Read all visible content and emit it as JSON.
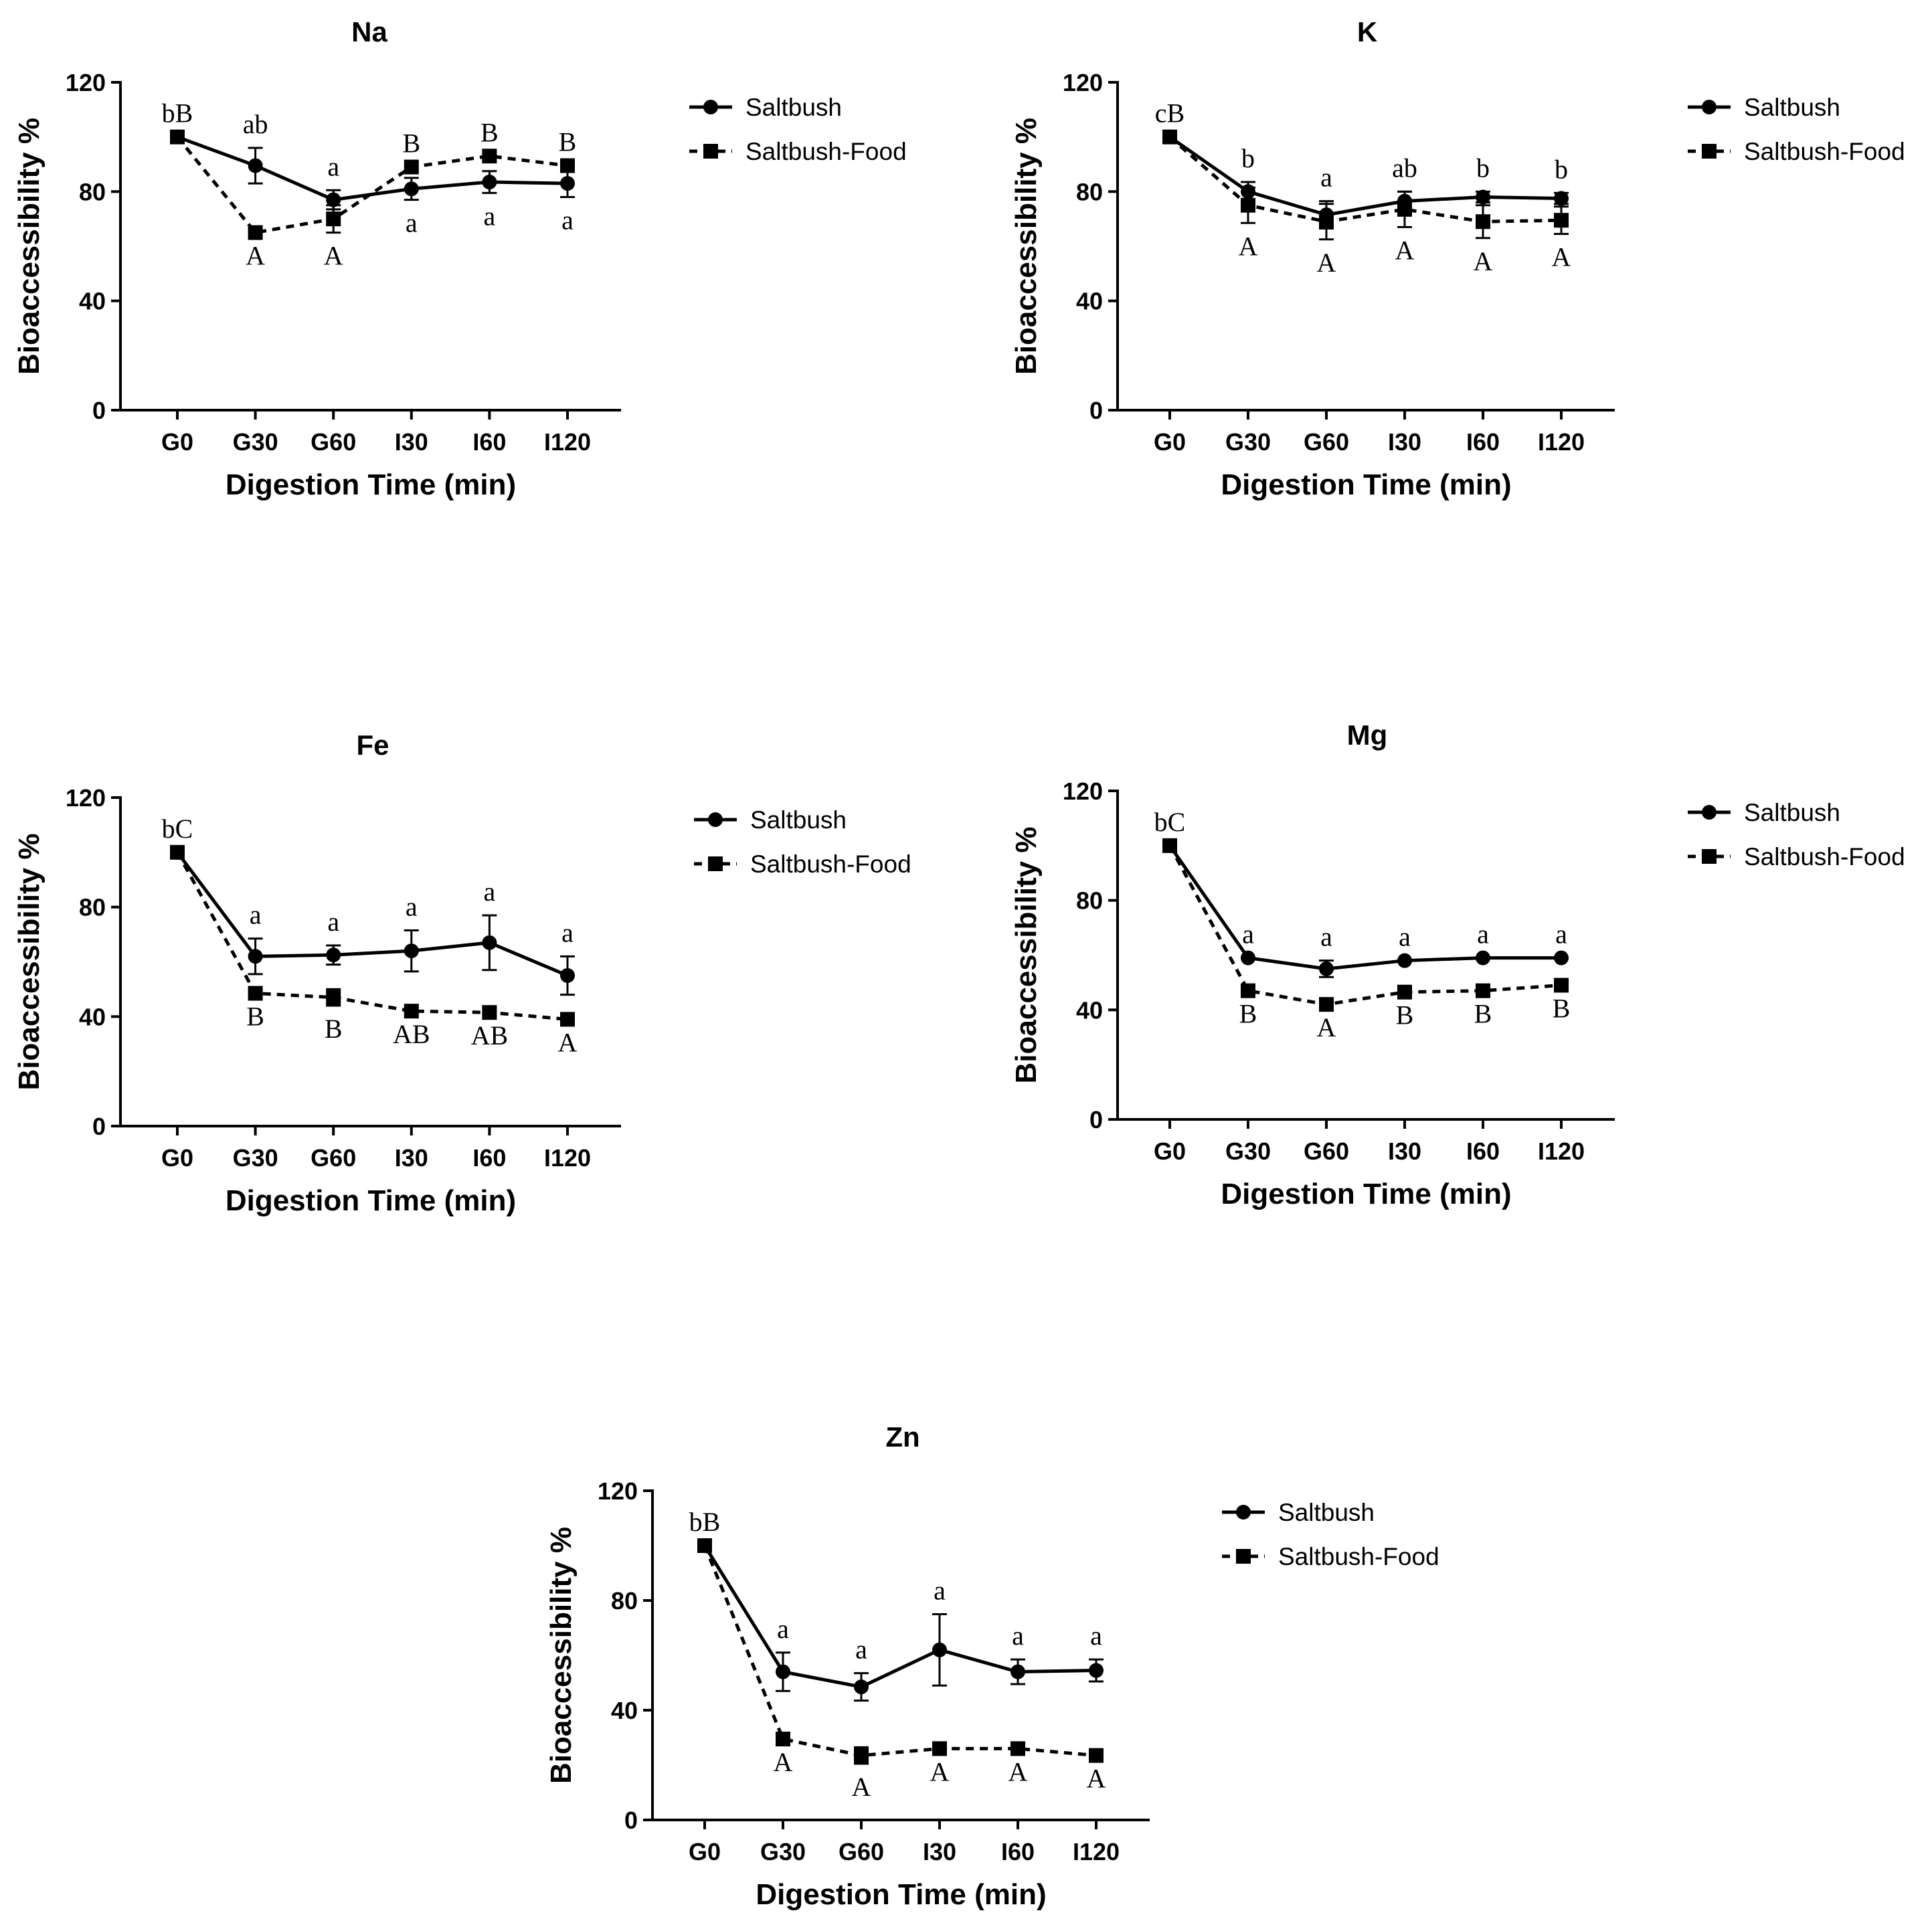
{
  "figure": {
    "xlabel": "Digestion Time (min)",
    "ylabel": "Bioaccessibility %",
    "categories": [
      "G0",
      "G30",
      "G60",
      "I30",
      "I60",
      "I120"
    ],
    "yticks": [
      "0",
      "40",
      "80",
      "120"
    ],
    "legend": [
      "Saltbush",
      "Saltbush-Food"
    ]
  },
  "chart_data": [
    {
      "type": "line",
      "title": "Na",
      "xlabel": "Digestion Time (min)",
      "ylabel": "Bioaccessibility %",
      "categories": [
        "G0",
        "G30",
        "G60",
        "I30",
        "I60",
        "I120"
      ],
      "ylim": [
        0,
        120
      ],
      "yticks": [
        0,
        40,
        80,
        120
      ],
      "legend_position": "right",
      "series": [
        {
          "name": "Saltbush",
          "style": "solid",
          "marker": "circle",
          "values": [
            100,
            89.5,
            77,
            81,
            83.5,
            83
          ],
          "errors": [
            0,
            6.5,
            3.5,
            4,
            4,
            5
          ],
          "labels": [
            "bB",
            "ab",
            "a",
            "a",
            "a",
            "a"
          ],
          "label_side": [
            "above",
            "above",
            "above",
            "below",
            "below",
            "below"
          ]
        },
        {
          "name": "Saltbush-Food",
          "style": "dashed",
          "marker": "square",
          "values": [
            100,
            65,
            70,
            89,
            93,
            89.5
          ],
          "errors": [
            0,
            0,
            5,
            0,
            0,
            0
          ],
          "labels": [
            "",
            "A",
            "A",
            "B",
            "B",
            "B"
          ],
          "label_side": [
            "",
            "below",
            "below",
            "above",
            "above",
            "above"
          ]
        }
      ]
    },
    {
      "type": "line",
      "title": "K",
      "xlabel": "Digestion Time (min)",
      "ylabel": "Bioaccessibility %",
      "categories": [
        "G0",
        "G30",
        "G60",
        "I30",
        "I60",
        "I120"
      ],
      "ylim": [
        0,
        120
      ],
      "yticks": [
        0,
        40,
        80,
        120
      ],
      "legend_position": "right",
      "series": [
        {
          "name": "Saltbush",
          "style": "solid",
          "marker": "circle",
          "values": [
            100,
            80,
            71.5,
            76.5,
            78,
            77.5
          ],
          "errors": [
            0,
            3.5,
            5,
            3.5,
            2,
            2
          ],
          "labels": [
            "cB",
            "b",
            "a",
            "ab",
            "b",
            "b"
          ],
          "label_side": [
            "above",
            "above",
            "above",
            "above",
            "above",
            "above"
          ]
        },
        {
          "name": "Saltbush-Food",
          "style": "dashed",
          "marker": "square",
          "values": [
            100,
            75,
            69,
            73.5,
            69,
            69.5
          ],
          "errors": [
            0,
            6.5,
            6.5,
            6.5,
            6,
            5
          ],
          "labels": [
            "",
            "A",
            "A",
            "A",
            "A",
            "A"
          ],
          "label_side": [
            "",
            "below",
            "below",
            "below",
            "below",
            "below"
          ]
        }
      ]
    },
    {
      "type": "line",
      "title": "Fe",
      "xlabel": "Digestion Time (min)",
      "ylabel": "Bioaccessibility %",
      "categories": [
        "G0",
        "G30",
        "G60",
        "I30",
        "I60",
        "I120"
      ],
      "ylim": [
        0,
        120
      ],
      "yticks": [
        0,
        40,
        80,
        120
      ],
      "legend_position": "right",
      "series": [
        {
          "name": "Saltbush",
          "style": "solid",
          "marker": "circle",
          "values": [
            100,
            62,
            62.5,
            64,
            67,
            55
          ],
          "errors": [
            0,
            6.5,
            3.5,
            7.5,
            10,
            7
          ],
          "labels": [
            "bC",
            "a",
            "a",
            "a",
            "a",
            "a"
          ],
          "label_side": [
            "above",
            "above",
            "above",
            "above",
            "above",
            "above"
          ]
        },
        {
          "name": "Saltbush-Food",
          "style": "dashed",
          "marker": "square",
          "values": [
            100,
            48.5,
            47,
            42,
            41.5,
            39
          ],
          "errors": [
            0,
            0,
            3,
            0,
            0,
            0
          ],
          "labels": [
            "",
            "B",
            "B",
            "AB",
            "AB",
            "A"
          ],
          "label_side": [
            "",
            "below",
            "below",
            "below",
            "below",
            "below"
          ]
        }
      ]
    },
    {
      "type": "line",
      "title": "Mg",
      "xlabel": "Digestion Time (min)",
      "ylabel": "Bioaccessibility %",
      "categories": [
        "G0",
        "G30",
        "G60",
        "I30",
        "I60",
        "I120"
      ],
      "ylim": [
        0,
        120
      ],
      "yticks": [
        0,
        40,
        80,
        120
      ],
      "legend_position": "right",
      "series": [
        {
          "name": "Saltbush",
          "style": "solid",
          "marker": "circle",
          "values": [
            100,
            59,
            55,
            58,
            59,
            59
          ],
          "errors": [
            0,
            0,
            3,
            0,
            0,
            0
          ],
          "labels": [
            "bC",
            "a",
            "a",
            "a",
            "a",
            "a"
          ],
          "label_side": [
            "above",
            "above",
            "above",
            "above",
            "above",
            "above"
          ]
        },
        {
          "name": "Saltbush-Food",
          "style": "dashed",
          "marker": "square",
          "values": [
            100,
            47,
            42,
            46.5,
            47,
            49
          ],
          "errors": [
            0,
            0,
            0,
            0,
            0,
            0
          ],
          "labels": [
            "",
            "B",
            "A",
            "B",
            "B",
            "B"
          ],
          "label_side": [
            "",
            "below",
            "below",
            "below",
            "below",
            "below"
          ]
        }
      ]
    },
    {
      "type": "line",
      "title": "Zn",
      "xlabel": "Digestion Time (min)",
      "ylabel": "Bioaccessibility %",
      "categories": [
        "G0",
        "G30",
        "G60",
        "I30",
        "I60",
        "I120"
      ],
      "ylim": [
        0,
        120
      ],
      "yticks": [
        0,
        40,
        80,
        120
      ],
      "legend_position": "right",
      "series": [
        {
          "name": "Saltbush",
          "style": "solid",
          "marker": "circle",
          "values": [
            100,
            54,
            48.5,
            62,
            54,
            54.5
          ],
          "errors": [
            0,
            7,
            5,
            13,
            4.5,
            4
          ],
          "labels": [
            "bB",
            "a",
            "a",
            "a",
            "a",
            "a"
          ],
          "label_side": [
            "above",
            "above",
            "above",
            "above",
            "above",
            "above"
          ]
        },
        {
          "name": "Saltbush-Food",
          "style": "dashed",
          "marker": "square",
          "values": [
            100,
            29.5,
            23.5,
            26,
            26,
            23.5
          ],
          "errors": [
            0,
            0,
            3,
            0,
            0,
            0
          ],
          "labels": [
            "",
            "A",
            "A",
            "A",
            "A",
            "A"
          ],
          "label_side": [
            "",
            "below",
            "below",
            "below",
            "below",
            "below"
          ]
        }
      ]
    }
  ]
}
